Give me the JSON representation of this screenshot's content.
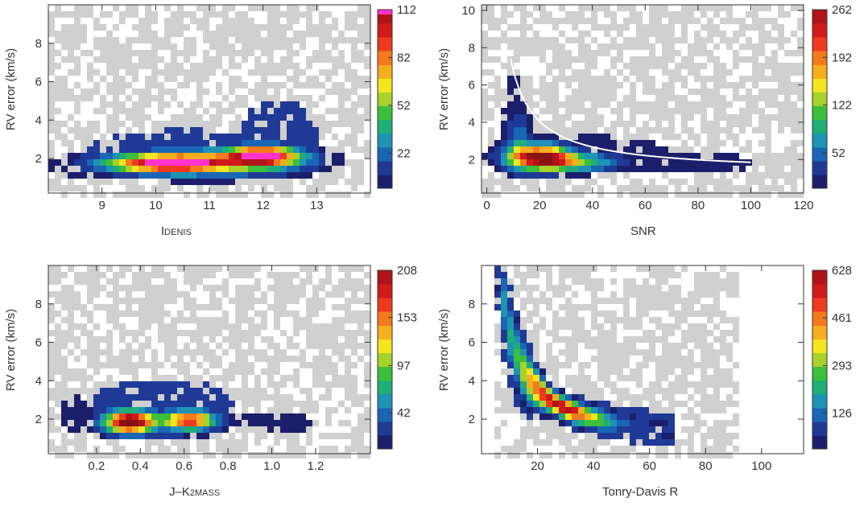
{
  "colors": {
    "colormap": [
      "#1b1f6b",
      "#1f3a96",
      "#1966b4",
      "#1f93b4",
      "#1fae78",
      "#3cbf3c",
      "#a6d22a",
      "#f5e51e",
      "#f6ae1e",
      "#f47a1e",
      "#ee3a1e",
      "#d11a1a",
      "#b01418",
      "#8a1212",
      "#ff33cc"
    ],
    "light_gray": "#d0d0d0",
    "fit_curve": "#ffffff",
    "axis": "#333333"
  },
  "chart_data": [
    {
      "type": "heatmap",
      "panel": "top-left",
      "xlabel": "I",
      "xlabel_sub": "DENIS",
      "ylabel": "RV error (km/s)",
      "xlim": [
        8,
        14
      ],
      "ylim": [
        0.2,
        10
      ],
      "xticks": [
        9,
        10,
        11,
        12,
        13
      ],
      "yticks": [
        2,
        4,
        6,
        8
      ],
      "colorbar_ticks": [
        22,
        52,
        82,
        112
      ],
      "colorbar_max": 112,
      "colorbar_top_color": "#ff33cc",
      "blobs": [
        {
          "x": 10.2,
          "y": 1.75,
          "sx": 0.75,
          "sy": 0.32,
          "w": 0.85
        },
        {
          "x": 12.0,
          "y": 2.15,
          "sx": 0.45,
          "sy": 0.35,
          "w": 0.95
        },
        {
          "x": 11.1,
          "y": 1.8,
          "sx": 1.1,
          "sy": 0.45,
          "w": 0.45
        }
      ],
      "extent": [
        {
          "x": 8.6,
          "y": 1.6,
          "sx": 0.5,
          "sy": 0.45,
          "w": 0.06
        },
        {
          "x": 10.5,
          "y": 2.2,
          "sx": 1.6,
          "sy": 1.1,
          "w": 0.07
        },
        {
          "x": 12.3,
          "y": 3.2,
          "sx": 0.6,
          "sy": 1.6,
          "w": 0.07
        },
        {
          "x": 12.8,
          "y": 7.6,
          "sx": 0.6,
          "sy": 1.2,
          "w": 0.025
        },
        {
          "x": 9.8,
          "y": 4.9,
          "sx": 0.9,
          "sy": 1.0,
          "w": 0.03
        }
      ]
    },
    {
      "type": "heatmap",
      "panel": "top-right",
      "xlabel": "SNR",
      "ylabel": "RV error (km/s)",
      "xlim": [
        -2,
        120
      ],
      "ylim": [
        0.2,
        10.3
      ],
      "xticks": [
        0,
        20,
        40,
        60,
        80,
        100,
        120
      ],
      "yticks": [
        2,
        4,
        6,
        8,
        10
      ],
      "colorbar_ticks": [
        52,
        122,
        192,
        262
      ],
      "colorbar_max": 262,
      "blobs": [
        {
          "x": 20,
          "y": 2.15,
          "sx": 8,
          "sy": 0.45,
          "w": 0.95
        },
        {
          "x": 32,
          "y": 1.85,
          "sx": 12,
          "sy": 0.32,
          "w": 0.45
        },
        {
          "x": 12,
          "y": 3.2,
          "sx": 3,
          "sy": 1.0,
          "w": 0.2
        }
      ],
      "extent": [
        {
          "x": 10,
          "y": 4.3,
          "sx": 3,
          "sy": 2.0,
          "w": 0.06
        },
        {
          "x": 40,
          "y": 2.3,
          "sx": 25,
          "sy": 0.8,
          "w": 0.06
        },
        {
          "x": 75,
          "y": 1.8,
          "sx": 22,
          "sy": 0.55,
          "w": 0.04
        },
        {
          "x": 60,
          "y": 4.5,
          "sx": 15,
          "sy": 0.9,
          "w": 0.02
        }
      ],
      "fit_curve": {
        "a": 1.3,
        "b": 55,
        "x_start": 9,
        "x_end": 100
      }
    },
    {
      "type": "heatmap",
      "panel": "bottom-left",
      "xlabel": "J–K",
      "xlabel_sub": "2MASS",
      "ylabel": "RV error (km/s)",
      "xlim": [
        -0.02,
        1.45
      ],
      "ylim": [
        0.2,
        10
      ],
      "xticks": [
        0.2,
        0.4,
        0.6,
        0.8,
        1.0,
        1.2
      ],
      "yticks": [
        2,
        4,
        6,
        8
      ],
      "colorbar_ticks": [
        42,
        97,
        153,
        208
      ],
      "colorbar_max": 208,
      "blobs": [
        {
          "x": 0.35,
          "y": 1.85,
          "sx": 0.07,
          "sy": 0.4,
          "w": 1.0
        },
        {
          "x": 0.63,
          "y": 1.95,
          "sx": 0.07,
          "sy": 0.35,
          "w": 0.7
        },
        {
          "x": 0.49,
          "y": 1.9,
          "sx": 0.18,
          "sy": 0.35,
          "w": 0.25
        }
      ],
      "extent": [
        {
          "x": 0.5,
          "y": 2.6,
          "sx": 0.28,
          "sy": 1.3,
          "w": 0.07
        },
        {
          "x": 1.0,
          "y": 1.8,
          "sx": 0.15,
          "sy": 0.5,
          "w": 0.05
        },
        {
          "x": 0.45,
          "y": 5.2,
          "sx": 0.25,
          "sy": 1.0,
          "w": 0.025
        },
        {
          "x": 0.12,
          "y": 2.2,
          "sx": 0.08,
          "sy": 0.8,
          "w": 0.04
        }
      ]
    },
    {
      "type": "heatmap",
      "panel": "bottom-right",
      "xlabel": "Tonry-Davis R",
      "ylabel": "RV error (km/s)",
      "xlim": [
        0,
        115
      ],
      "ylim": [
        0.2,
        10
      ],
      "xticks": [
        20,
        40,
        60,
        80,
        100
      ],
      "yticks": [
        2,
        4,
        6,
        8
      ],
      "colorbar_ticks": [
        126,
        293,
        461,
        628
      ],
      "colorbar_max": 628,
      "ridge": {
        "a": 0.55,
        "b": 60,
        "x_start": 7,
        "x_end": 92,
        "peak_x": [
          20,
          45
        ]
      }
    }
  ]
}
